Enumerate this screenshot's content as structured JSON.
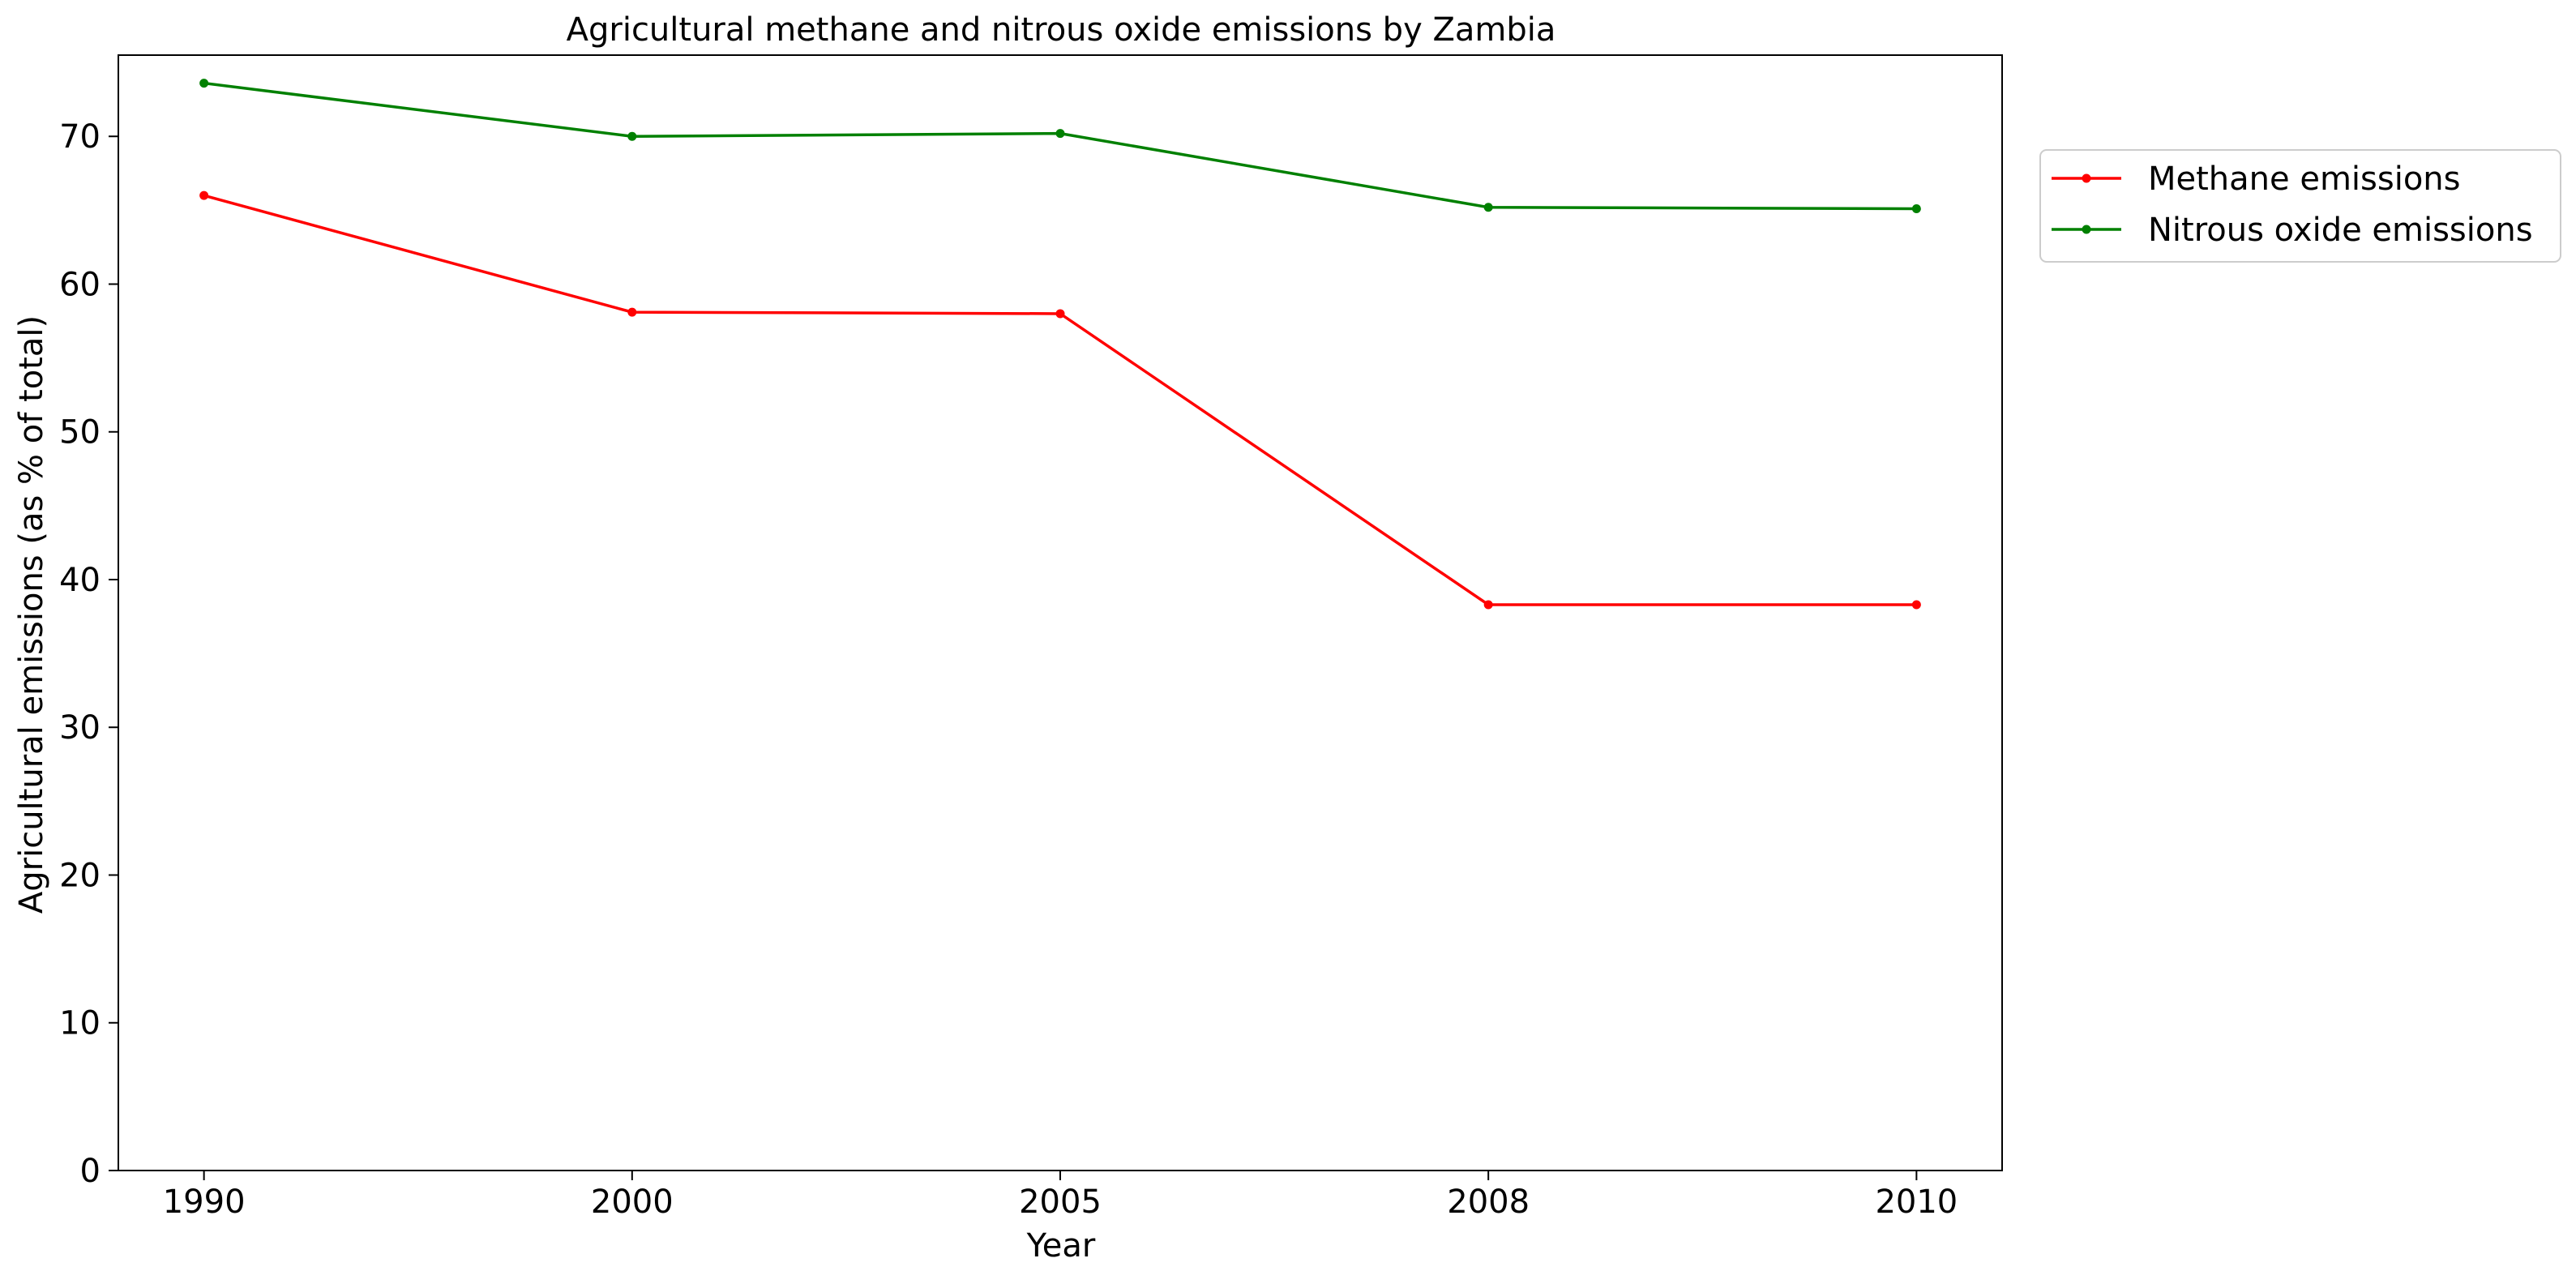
{
  "chart_data": {
    "type": "line",
    "title": "Agricultural methane and nitrous oxide emissions by Zambia",
    "xlabel": "Year",
    "ylabel": "Agricultural emissions (as % of total)",
    "categories": [
      "1990",
      "2000",
      "2005",
      "2008",
      "2010"
    ],
    "ylim": [
      0,
      75.5
    ],
    "yticks": [
      0,
      10,
      20,
      30,
      40,
      50,
      60,
      70
    ],
    "grid": false,
    "legend_position": "outside-right-top",
    "series": [
      {
        "name": "Methane emissions",
        "color": "#ff0000",
        "values": [
          66.0,
          58.1,
          58.0,
          38.3,
          38.3
        ]
      },
      {
        "name": "Nitrous oxide emissions",
        "color": "#008000",
        "values": [
          73.6,
          70.0,
          70.2,
          65.2,
          65.1
        ]
      }
    ]
  }
}
